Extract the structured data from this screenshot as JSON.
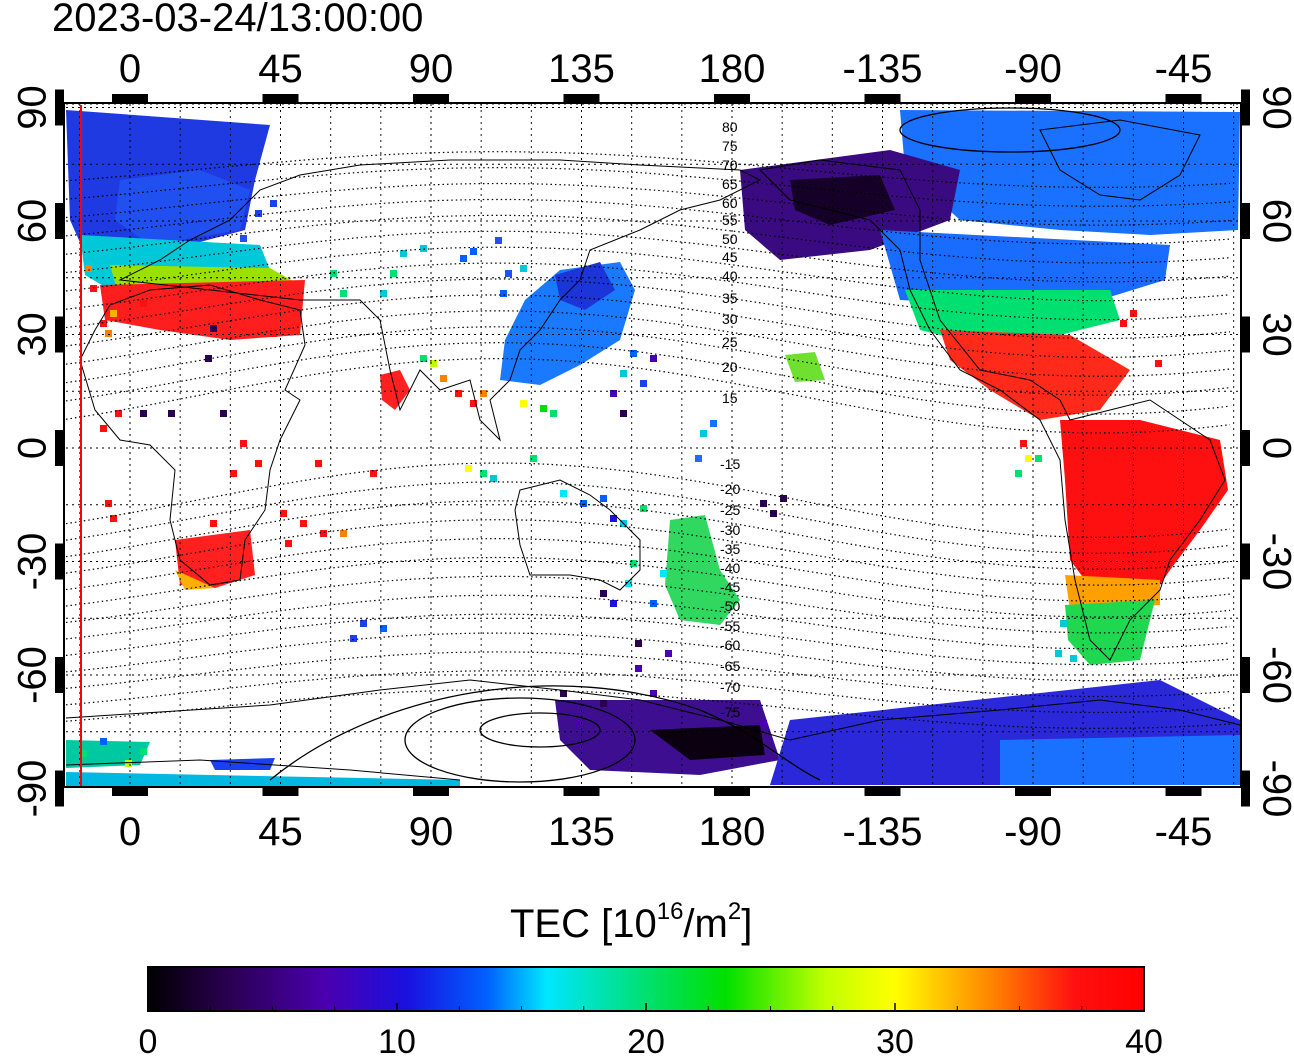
{
  "timestamp": "2023-03-24/13:00:00",
  "colorbar": {
    "title_main": "TEC  [10",
    "title_exp1": "16",
    "title_mid": "/m",
    "title_exp2": "2",
    "title_end": "]",
    "ticks": [
      "0",
      "10",
      "20",
      "30",
      "40"
    ],
    "range": [
      0,
      40
    ]
  },
  "axes": {
    "lon_ticks": [
      "0",
      "45",
      "90",
      "135",
      "180",
      "-135",
      "-90",
      "-45"
    ],
    "lat_ticks": [
      "90",
      "60",
      "30",
      "0",
      "-30",
      "-60",
      "-90"
    ]
  },
  "magnetic_latitude_labels": [
    "80",
    "75",
    "70",
    "65",
    "60",
    "55",
    "50",
    "45",
    "40",
    "35",
    "30",
    "25",
    "20",
    "15",
    "-15",
    "-20",
    "-25",
    "-30",
    "-35",
    "-40",
    "-45",
    "-50",
    "-55",
    "-60",
    "-65",
    "-70",
    "-75"
  ],
  "chart_data": {
    "type": "heatmap",
    "title": "2023-03-24/13:00:00",
    "quantity": "TEC [10^16/m^2]",
    "colorscale_range": [
      0,
      40
    ],
    "xlim": [
      -20,
      340
    ],
    "ylim": [
      -90,
      90
    ],
    "regions": [
      {
        "lon": [
          -15,
          30
        ],
        "lat": [
          60,
          90
        ],
        "tec": 8
      },
      {
        "lon": [
          -15,
          40
        ],
        "lat": [
          45,
          60
        ],
        "tec": 17
      },
      {
        "lon": [
          -5,
          50
        ],
        "lat": [
          30,
          45
        ],
        "tec": 38
      },
      {
        "lon": [
          15,
          35
        ],
        "lat": [
          -35,
          -25
        ],
        "tec": 38
      },
      {
        "lon": [
          125,
          150
        ],
        "lat": [
          20,
          50
        ],
        "tec": 13
      },
      {
        "lon": [
          190,
          240
        ],
        "lat": [
          50,
          80
        ],
        "tec": 3
      },
      {
        "lon": [
          230,
          310
        ],
        "lat": [
          35,
          60
        ],
        "tec": 12
      },
      {
        "lon": [
          240,
          300
        ],
        "lat": [
          10,
          35
        ],
        "tec": 37
      },
      {
        "lon": [
          280,
          330
        ],
        "lat": [
          -30,
          10
        ],
        "tec": 39
      },
      {
        "lon": [
          290,
          320
        ],
        "lat": [
          -55,
          -30
        ],
        "tec": 25
      },
      {
        "lon": [
          150,
          180
        ],
        "lat": [
          -85,
          -70
        ],
        "tec": 1
      },
      {
        "lon": [
          200,
          330
        ],
        "lat": [
          -90,
          -70
        ],
        "tec": 9
      },
      {
        "lon": [
          160,
          185
        ],
        "lat": [
          -50,
          -25
        ],
        "tec": 20
      }
    ]
  }
}
